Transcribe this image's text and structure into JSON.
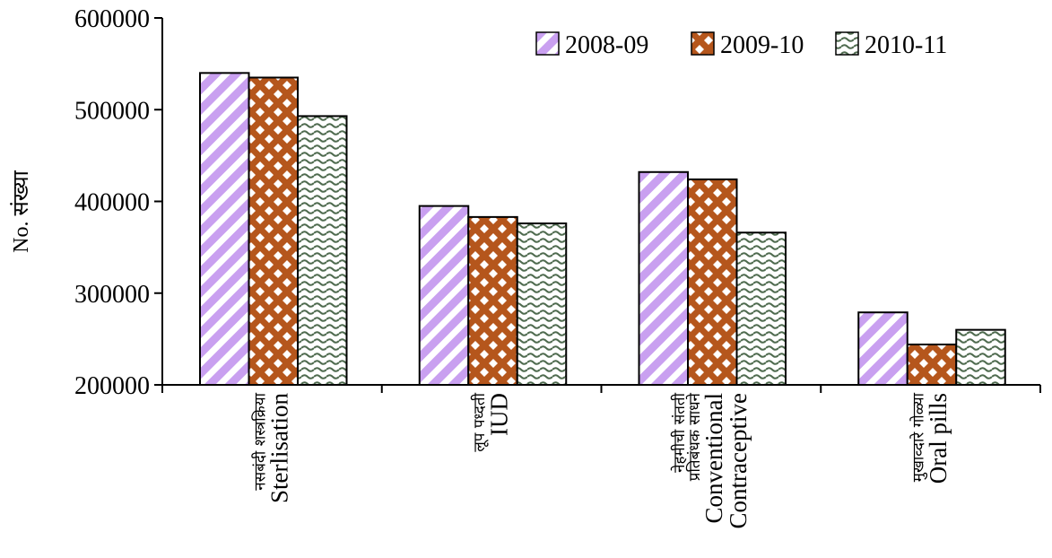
{
  "chart_data": {
    "type": "bar",
    "ylabel": "No. संख्या",
    "ylim": [
      200000,
      600000
    ],
    "yticks": [
      "200000",
      "300000",
      "400000",
      "500000",
      "600000"
    ],
    "categories": [
      {
        "mr": [
          "नसबंदी शस्त्रक्रिया"
        ],
        "en": [
          "Sterlisation"
        ]
      },
      {
        "mr": [
          "लूप पध्दती"
        ],
        "en": [
          "IUD"
        ]
      },
      {
        "mr": [
          "नेहमीची संतती",
          "प्रतिबंधक साधने"
        ],
        "en": [
          "Conventional",
          "Contraceptive"
        ]
      },
      {
        "mr": [
          "मुखाव्दारे गोळ्या"
        ],
        "en": [
          "Oral pills"
        ]
      }
    ],
    "series": [
      {
        "name": "2008-09",
        "values": [
          540000,
          395000,
          432000,
          279000
        ]
      },
      {
        "name": "2009-10",
        "values": [
          535000,
          383000,
          424000,
          244000
        ]
      },
      {
        "name": "2010-11",
        "values": [
          493000,
          376000,
          366000,
          260000
        ]
      }
    ],
    "legend_position": "top-right",
    "grid": false,
    "colors": {
      "hatch": "#c9a0f0",
      "checker": "#b5561c",
      "wave": "#4f6b4f",
      "outline": "#000000"
    }
  }
}
